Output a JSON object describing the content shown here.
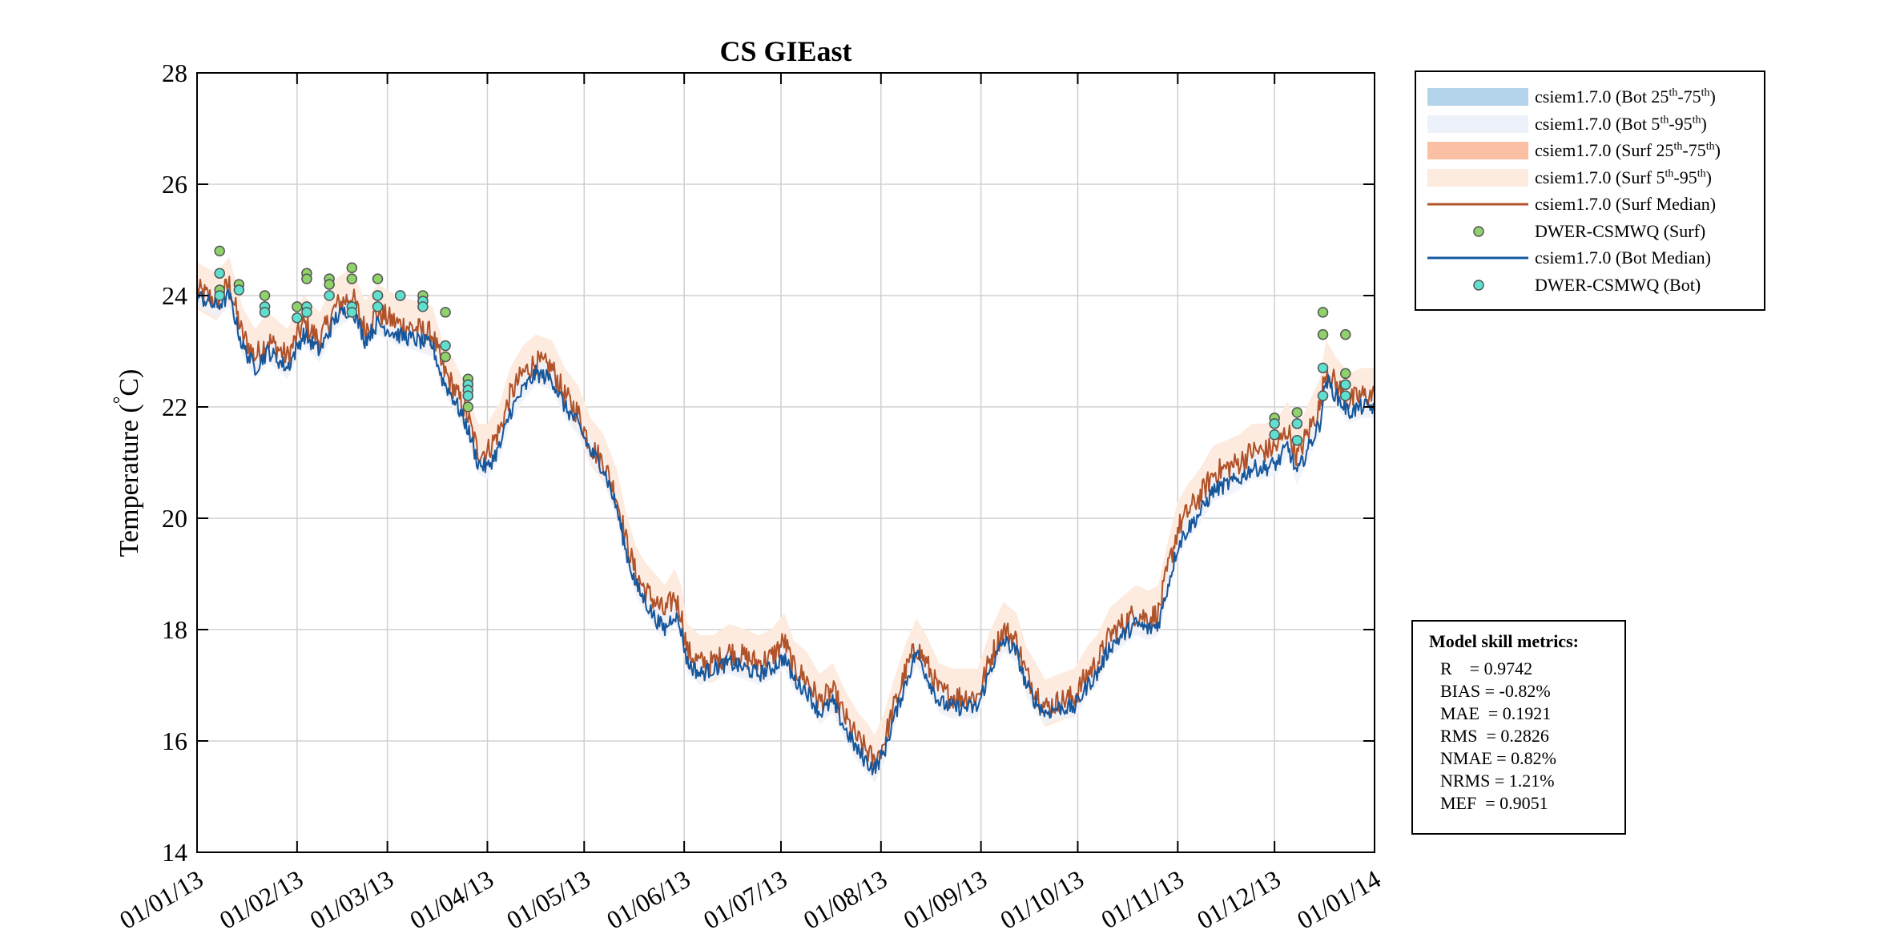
{
  "chart_data": {
    "type": "line",
    "title": "CS GIEast",
    "ylabel": "Temperature (°C)",
    "ylabel_main": "Temperature (",
    "ylabel_deg": "°",
    "ylabel_unit": "C)",
    "xlabel": "",
    "ylim": [
      14,
      28
    ],
    "yticks": [
      14,
      16,
      18,
      20,
      22,
      24,
      26,
      28
    ],
    "xlim_day": [
      0,
      365
    ],
    "xticks": [
      {
        "label": "01/01/13",
        "day": 0
      },
      {
        "label": "01/02/13",
        "day": 31
      },
      {
        "label": "01/03/13",
        "day": 59
      },
      {
        "label": "01/04/13",
        "day": 90
      },
      {
        "label": "01/05/13",
        "day": 120
      },
      {
        "label": "01/06/13",
        "day": 151
      },
      {
        "label": "01/07/13",
        "day": 181
      },
      {
        "label": "01/08/13",
        "day": 212
      },
      {
        "label": "01/09/13",
        "day": 243
      },
      {
        "label": "01/10/13",
        "day": 273
      },
      {
        "label": "01/11/13",
        "day": 304
      },
      {
        "label": "01/12/13",
        "day": 334
      },
      {
        "label": "01/01/14",
        "day": 365
      }
    ],
    "grid": true,
    "legend_position": "outside-top-right",
    "series": [
      {
        "name": "csiem1.7.0 (Surf Median)",
        "color": "#b0522a",
        "type": "line",
        "points": [
          [
            0,
            24.1
          ],
          [
            6,
            23.9
          ],
          [
            10,
            24.2
          ],
          [
            14,
            23.3
          ],
          [
            18,
            22.9
          ],
          [
            22,
            23.2
          ],
          [
            28,
            22.9
          ],
          [
            33,
            23.5
          ],
          [
            38,
            23.2
          ],
          [
            43,
            23.8
          ],
          [
            48,
            24.0
          ],
          [
            52,
            23.4
          ],
          [
            56,
            23.7
          ],
          [
            62,
            23.5
          ],
          [
            68,
            23.4
          ],
          [
            73,
            23.3
          ],
          [
            76,
            22.7
          ],
          [
            80,
            22.3
          ],
          [
            84,
            21.8
          ],
          [
            87,
            21.2
          ],
          [
            90,
            21.2
          ],
          [
            94,
            21.6
          ],
          [
            97,
            22.2
          ],
          [
            101,
            22.6
          ],
          [
            105,
            22.8
          ],
          [
            110,
            22.7
          ],
          [
            114,
            22.2
          ],
          [
            118,
            21.9
          ],
          [
            122,
            21.3
          ],
          [
            126,
            21.0
          ],
          [
            130,
            20.4
          ],
          [
            133,
            19.6
          ],
          [
            136,
            19.0
          ],
          [
            139,
            18.7
          ],
          [
            142,
            18.5
          ],
          [
            145,
            18.3
          ],
          [
            148,
            18.6
          ],
          [
            150,
            18.3
          ],
          [
            152,
            17.6
          ],
          [
            156,
            17.4
          ],
          [
            160,
            17.4
          ],
          [
            165,
            17.6
          ],
          [
            170,
            17.5
          ],
          [
            174,
            17.4
          ],
          [
            178,
            17.5
          ],
          [
            182,
            17.8
          ],
          [
            185,
            17.3
          ],
          [
            189,
            17.1
          ],
          [
            193,
            16.7
          ],
          [
            197,
            16.9
          ],
          [
            201,
            16.4
          ],
          [
            205,
            16.0
          ],
          [
            208,
            15.8
          ],
          [
            210,
            15.6
          ],
          [
            213,
            16.0
          ],
          [
            216,
            16.6
          ],
          [
            220,
            17.3
          ],
          [
            223,
            17.7
          ],
          [
            226,
            17.4
          ],
          [
            230,
            16.9
          ],
          [
            234,
            16.8
          ],
          [
            238,
            16.8
          ],
          [
            242,
            16.8
          ],
          [
            246,
            17.5
          ],
          [
            250,
            18.0
          ],
          [
            254,
            17.8
          ],
          [
            257,
            17.2
          ],
          [
            260,
            16.9
          ],
          [
            263,
            16.6
          ],
          [
            267,
            16.7
          ],
          [
            272,
            16.8
          ],
          [
            276,
            17.2
          ],
          [
            279,
            17.4
          ],
          [
            283,
            17.9
          ],
          [
            287,
            18.1
          ],
          [
            291,
            18.3
          ],
          [
            295,
            18.2
          ],
          [
            298,
            18.3
          ],
          [
            301,
            19.1
          ],
          [
            304,
            19.8
          ],
          [
            307,
            20.1
          ],
          [
            311,
            20.4
          ],
          [
            315,
            20.8
          ],
          [
            319,
            20.9
          ],
          [
            323,
            21.0
          ],
          [
            327,
            21.2
          ],
          [
            331,
            21.2
          ],
          [
            335,
            21.3
          ],
          [
            338,
            21.6
          ],
          [
            341,
            21.1
          ],
          [
            344,
            21.5
          ],
          [
            348,
            22.0
          ],
          [
            350,
            22.7
          ],
          [
            353,
            22.4
          ],
          [
            357,
            22.1
          ],
          [
            361,
            22.2
          ],
          [
            365,
            22.2
          ]
        ]
      },
      {
        "name": "csiem1.7.0 (Bot Median)",
        "color": "#16579c",
        "type": "line",
        "points": [
          [
            0,
            24.0
          ],
          [
            6,
            23.8
          ],
          [
            10,
            24.0
          ],
          [
            14,
            23.1
          ],
          [
            18,
            22.7
          ],
          [
            22,
            23.0
          ],
          [
            28,
            22.7
          ],
          [
            33,
            23.3
          ],
          [
            38,
            23.0
          ],
          [
            43,
            23.6
          ],
          [
            48,
            23.8
          ],
          [
            52,
            23.2
          ],
          [
            56,
            23.5
          ],
          [
            62,
            23.3
          ],
          [
            68,
            23.2
          ],
          [
            73,
            23.1
          ],
          [
            76,
            22.5
          ],
          [
            80,
            22.1
          ],
          [
            84,
            21.6
          ],
          [
            87,
            21.0
          ],
          [
            90,
            20.9
          ],
          [
            94,
            21.3
          ],
          [
            97,
            21.9
          ],
          [
            101,
            22.3
          ],
          [
            105,
            22.6
          ],
          [
            110,
            22.5
          ],
          [
            114,
            22.0
          ],
          [
            118,
            21.7
          ],
          [
            122,
            21.2
          ],
          [
            126,
            20.9
          ],
          [
            130,
            20.2
          ],
          [
            133,
            19.4
          ],
          [
            136,
            18.8
          ],
          [
            139,
            18.5
          ],
          [
            142,
            18.2
          ],
          [
            145,
            18.0
          ],
          [
            148,
            18.3
          ],
          [
            150,
            18.0
          ],
          [
            152,
            17.4
          ],
          [
            156,
            17.2
          ],
          [
            160,
            17.3
          ],
          [
            165,
            17.4
          ],
          [
            170,
            17.3
          ],
          [
            174,
            17.2
          ],
          [
            178,
            17.3
          ],
          [
            182,
            17.5
          ],
          [
            185,
            17.1
          ],
          [
            189,
            16.9
          ],
          [
            193,
            16.5
          ],
          [
            197,
            16.7
          ],
          [
            201,
            16.2
          ],
          [
            205,
            15.8
          ],
          [
            208,
            15.6
          ],
          [
            210,
            15.5
          ],
          [
            213,
            15.8
          ],
          [
            216,
            16.4
          ],
          [
            220,
            17.1
          ],
          [
            223,
            17.6
          ],
          [
            226,
            17.2
          ],
          [
            230,
            16.7
          ],
          [
            234,
            16.6
          ],
          [
            238,
            16.6
          ],
          [
            242,
            16.6
          ],
          [
            246,
            17.3
          ],
          [
            250,
            17.8
          ],
          [
            254,
            17.6
          ],
          [
            257,
            17.0
          ],
          [
            260,
            16.7
          ],
          [
            263,
            16.5
          ],
          [
            267,
            16.6
          ],
          [
            272,
            16.6
          ],
          [
            276,
            17.0
          ],
          [
            279,
            17.2
          ],
          [
            283,
            17.7
          ],
          [
            287,
            17.9
          ],
          [
            291,
            18.1
          ],
          [
            295,
            18.0
          ],
          [
            298,
            18.1
          ],
          [
            301,
            18.8
          ],
          [
            304,
            19.5
          ],
          [
            307,
            19.8
          ],
          [
            311,
            20.1
          ],
          [
            315,
            20.5
          ],
          [
            319,
            20.6
          ],
          [
            323,
            20.7
          ],
          [
            327,
            20.9
          ],
          [
            331,
            20.9
          ],
          [
            335,
            21.0
          ],
          [
            338,
            21.3
          ],
          [
            341,
            20.8
          ],
          [
            344,
            21.2
          ],
          [
            348,
            21.7
          ],
          [
            350,
            22.5
          ],
          [
            353,
            22.2
          ],
          [
            357,
            21.9
          ],
          [
            361,
            22.0
          ],
          [
            365,
            22.0
          ]
        ]
      },
      {
        "name": "DWER-CSMWQ (Surf)",
        "color": "#8fd16b",
        "type": "scatter",
        "points": [
          [
            7,
            24.8
          ],
          [
            7,
            24.1
          ],
          [
            13,
            24.2
          ],
          [
            21,
            24.0
          ],
          [
            21,
            23.8
          ],
          [
            31,
            23.8
          ],
          [
            34,
            24.4
          ],
          [
            34,
            24.3
          ],
          [
            41,
            24.3
          ],
          [
            41,
            24.2
          ],
          [
            48,
            24.5
          ],
          [
            48,
            24.3
          ],
          [
            56,
            24.3
          ],
          [
            56,
            24.0
          ],
          [
            63,
            24.0
          ],
          [
            70,
            24.0
          ],
          [
            70,
            23.9
          ],
          [
            77,
            23.7
          ],
          [
            77,
            22.9
          ],
          [
            84,
            22.5
          ],
          [
            84,
            22.4
          ],
          [
            84,
            22.2
          ],
          [
            84,
            22.0
          ],
          [
            334,
            21.8
          ],
          [
            341,
            21.9
          ],
          [
            341,
            21.7
          ],
          [
            349,
            23.7
          ],
          [
            349,
            23.3
          ],
          [
            356,
            23.3
          ],
          [
            356,
            22.6
          ],
          [
            356,
            22.4
          ]
        ]
      },
      {
        "name": "DWER-CSMWQ (Bot)",
        "color": "#5fe0cf",
        "type": "scatter",
        "points": [
          [
            7,
            24.4
          ],
          [
            7,
            24.0
          ],
          [
            13,
            24.1
          ],
          [
            21,
            23.8
          ],
          [
            21,
            23.7
          ],
          [
            31,
            23.6
          ],
          [
            34,
            23.8
          ],
          [
            34,
            23.7
          ],
          [
            41,
            24.0
          ],
          [
            48,
            23.8
          ],
          [
            48,
            23.7
          ],
          [
            56,
            24.0
          ],
          [
            56,
            23.8
          ],
          [
            63,
            24.0
          ],
          [
            70,
            23.9
          ],
          [
            70,
            23.8
          ],
          [
            77,
            23.1
          ],
          [
            84,
            22.4
          ],
          [
            84,
            22.3
          ],
          [
            84,
            22.2
          ],
          [
            334,
            21.7
          ],
          [
            334,
            21.5
          ],
          [
            341,
            21.7
          ],
          [
            341,
            21.4
          ],
          [
            349,
            22.7
          ],
          [
            349,
            22.2
          ],
          [
            356,
            22.4
          ],
          [
            356,
            22.2
          ]
        ]
      }
    ],
    "legend": [
      {
        "label": "csiem1.7.0 (Bot 25",
        "sup1": "th",
        "mid": "-75",
        "sup2": "th",
        "end": ")",
        "swatch": "band",
        "color": "#b3d4ea"
      },
      {
        "label": "csiem1.7.0 (Bot 5",
        "sup1": "th",
        "mid": "-95",
        "sup2": "th",
        "end": ")",
        "swatch": "band",
        "color": "#edf2fa"
      },
      {
        "label": "csiem1.7.0 (Surf 25",
        "sup1": "th",
        "mid": "-75",
        "sup2": "th",
        "end": ")",
        "swatch": "band",
        "color": "#fbbfa4"
      },
      {
        "label": "csiem1.7.0 (Surf 5",
        "sup1": "th",
        "mid": "-95",
        "sup2": "th",
        "end": ")",
        "swatch": "band",
        "color": "#fcebde"
      },
      {
        "label": "csiem1.7.0 (Surf Median)",
        "swatch": "line",
        "color": "#b0522a"
      },
      {
        "label": "DWER-CSMWQ (Surf)",
        "swatch": "marker",
        "color": "#8fd16b"
      },
      {
        "label": "csiem1.7.0 (Bot Median)",
        "swatch": "line",
        "color": "#16579c"
      },
      {
        "label": "DWER-CSMWQ (Bot)",
        "swatch": "marker",
        "color": "#5fe0cf"
      }
    ],
    "band_colors": {
      "surf_5_95": "#fcebde",
      "bot_5_95": "#edf2fa"
    },
    "band_offsets": {
      "surf_5_95": [
        0.5,
        0.35
      ],
      "bot_5_95": [
        0.25,
        0.2
      ]
    }
  },
  "metrics": {
    "title": "Model skill metrics:",
    "lines": [
      "R    = 0.9742",
      "BIAS = -0.82%",
      "MAE  = 0.1921",
      "RMS  = 0.2826",
      "NMAE = 0.82%",
      "NRMS = 1.21%",
      "MEF  = 0.9051"
    ]
  }
}
